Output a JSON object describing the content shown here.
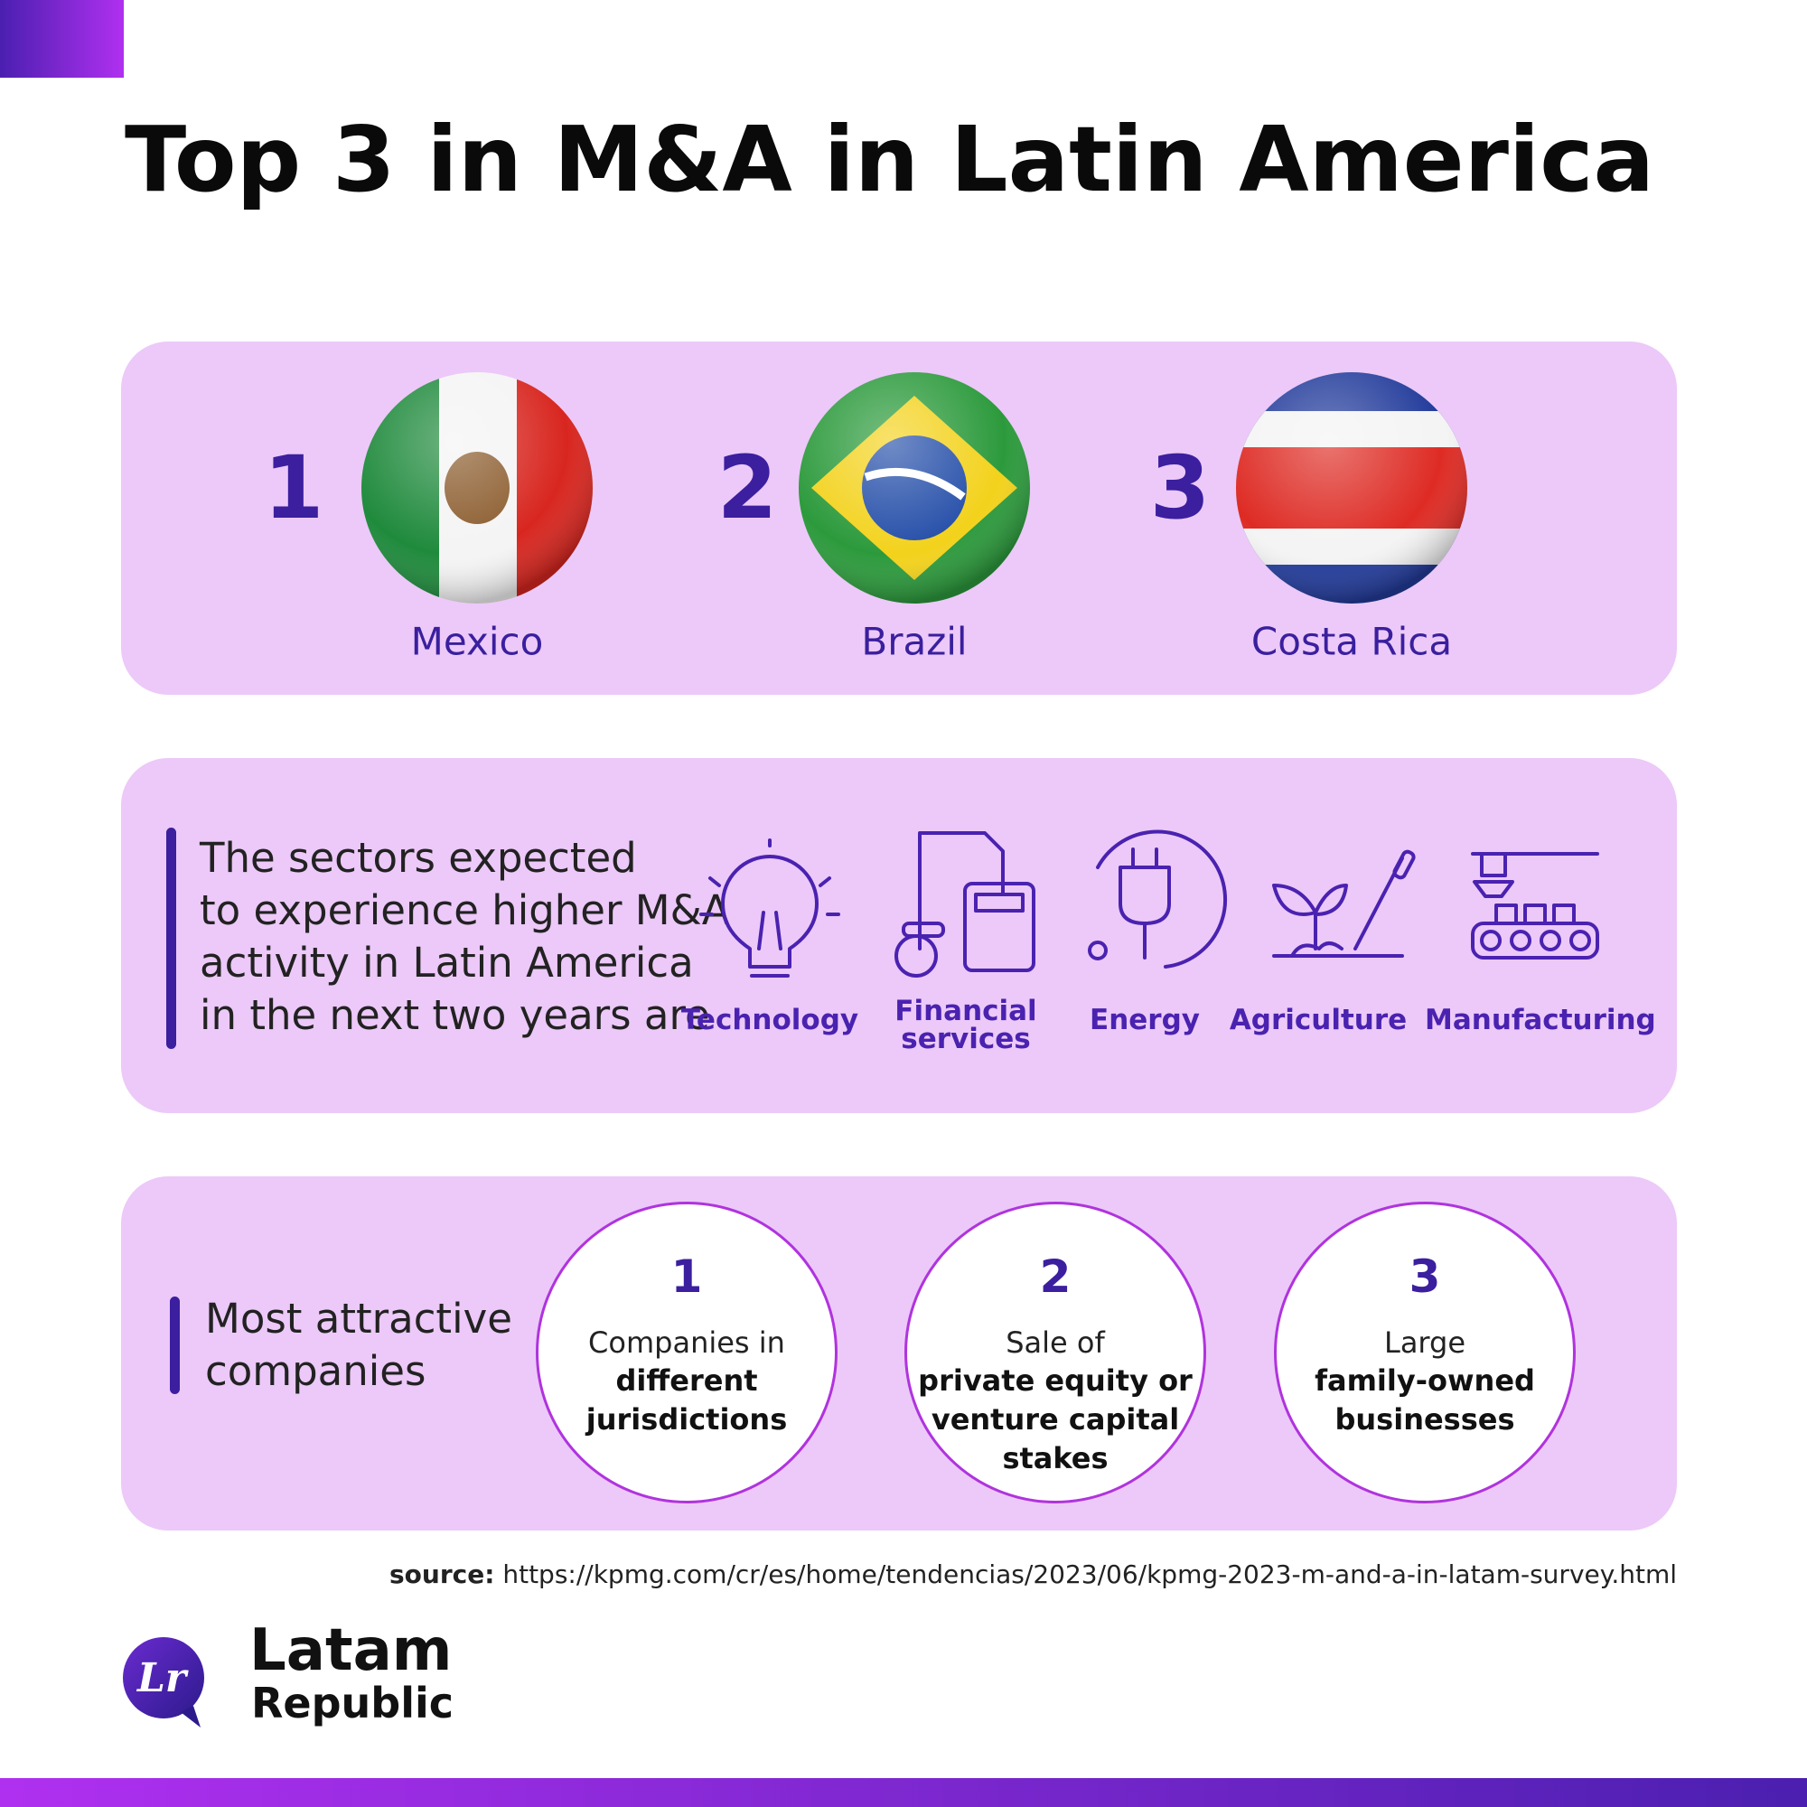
{
  "title": "Top 3 in M&A in Latin America",
  "countries": [
    {
      "rank": 1,
      "name": "Mexico"
    },
    {
      "rank": 2,
      "name": "Brazil"
    },
    {
      "rank": 3,
      "name": "Costa Rica"
    }
  ],
  "sectors": {
    "intro_lines": [
      "The sectors expected",
      "to experience higher M&A",
      "activity in Latin America",
      "in the next two years are"
    ],
    "items": [
      [
        "Technology"
      ],
      [
        "Financial",
        "services"
      ],
      [
        "Energy"
      ],
      [
        "Agriculture"
      ],
      [
        "Manufacturing"
      ]
    ]
  },
  "companies": {
    "heading_lines": [
      "Most attractive",
      "companies"
    ],
    "items": [
      {
        "rank": 1,
        "plain": "Companies in",
        "bold": [
          "different",
          "jurisdictions"
        ]
      },
      {
        "rank": 2,
        "plain": "Sale of",
        "bold": [
          "private equity or",
          "venture capital",
          "stakes"
        ]
      },
      {
        "rank": 3,
        "plain": "Large",
        "bold": [
          "family-owned",
          "businesses"
        ]
      }
    ]
  },
  "source": {
    "label": "source:",
    "url": "https://kpmg.com/cr/es/home/tendencias/2023/06/kpmg-2023-m-and-a-in-latam-survey.html"
  },
  "logo": {
    "mark": "Lr",
    "line1": "Latam",
    "line2": "Republic"
  }
}
